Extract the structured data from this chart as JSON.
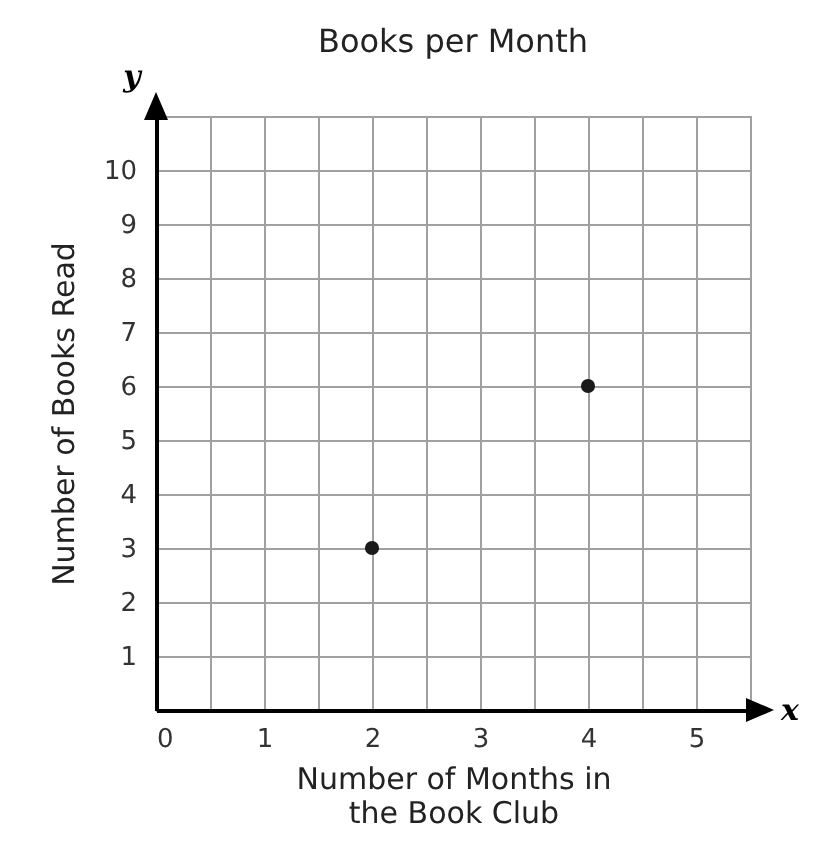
{
  "chart_data": {
    "type": "scatter",
    "title": "Books per Month",
    "xlabel": "Number of Months in\nthe Book Club",
    "ylabel": "Number of Books Read",
    "x": [
      2,
      4
    ],
    "series": [
      {
        "color": "#1a1a1a",
        "values": [
          3,
          6
        ]
      }
    ],
    "xlim": [
      0,
      5.5
    ],
    "ylim": [
      0,
      11
    ],
    "xticks": [
      0,
      {
        "value": 0.5,
        "label": null
      },
      1,
      {
        "value": 1.5,
        "label": null
      },
      2,
      {
        "value": 2.5,
        "label": null
      },
      3,
      {
        "value": 3.5,
        "label": null
      },
      4,
      {
        "value": 4.5,
        "label": null
      },
      5
    ],
    "yticks": [
      1,
      2,
      3,
      4,
      5,
      6,
      7,
      8,
      9,
      10
    ],
    "grid": true,
    "marker": "circle",
    "annotations": [
      "x",
      "y"
    ]
  }
}
